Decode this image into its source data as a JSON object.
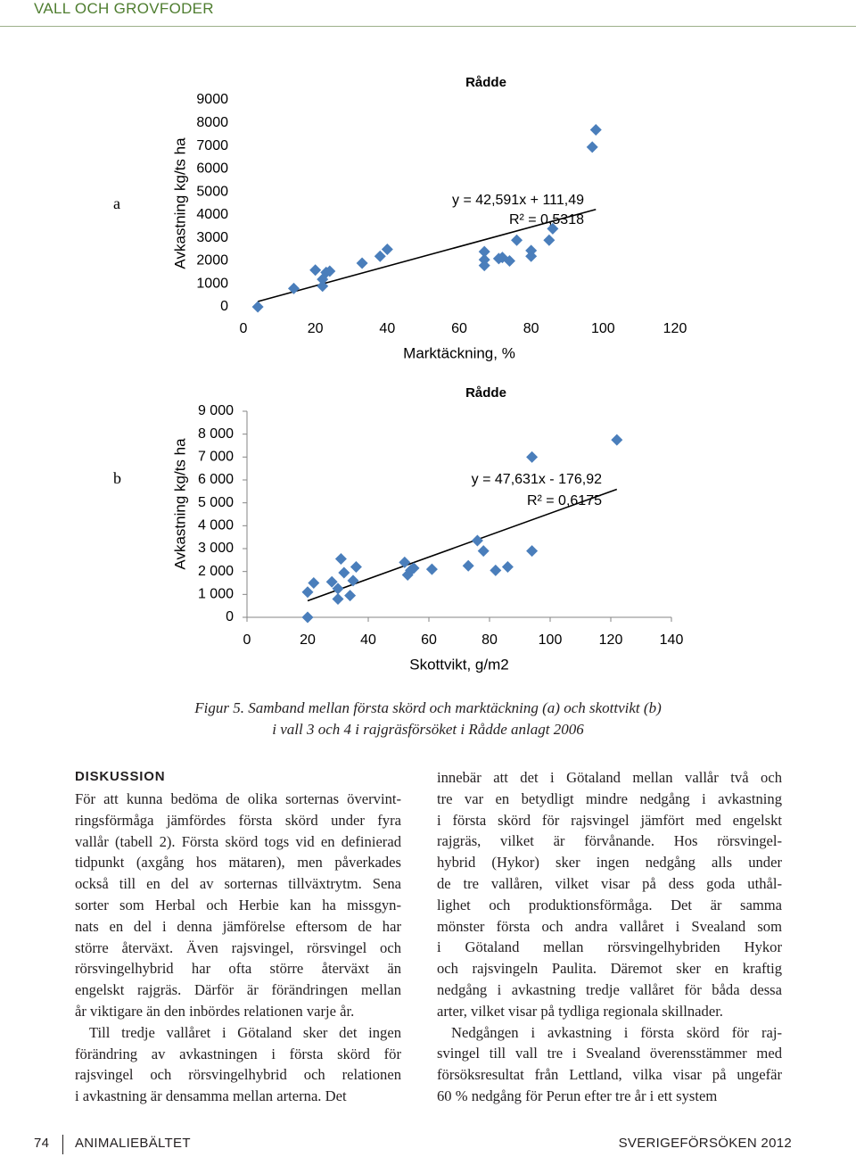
{
  "header": {
    "section": "VALL OCH GROVFODER"
  },
  "chart_data": [
    {
      "type": "scatter",
      "panel": "a",
      "title": "Rådde",
      "y_label": "Avkastning kg/ts ha",
      "x_label": "Marktäckning, %",
      "annotations": [
        "y = 42,591x + 111,49",
        "R² = 0,5318"
      ],
      "color": "#4a7ebb",
      "trendline": true,
      "x": [
        4,
        14,
        20,
        22,
        22,
        23,
        24,
        33,
        38,
        40,
        67,
        67,
        67,
        71,
        72,
        74,
        76,
        80,
        80,
        85,
        86,
        97,
        98
      ],
      "values": [
        0,
        800,
        1600,
        1200,
        900,
        1500,
        1550,
        1900,
        2200,
        2500,
        2400,
        2050,
        1800,
        2100,
        2150,
        2000,
        2900,
        2450,
        2200,
        2900,
        3400,
        6950,
        7700
      ],
      "xlim": [
        0,
        120
      ],
      "xticks": [
        0,
        20,
        40,
        60,
        80,
        100,
        120
      ],
      "ylim": [
        0,
        9000
      ],
      "yticks": [
        0,
        1000,
        2000,
        3000,
        4000,
        5000,
        6000,
        7000,
        8000,
        9000
      ],
      "axes": false
    },
    {
      "type": "scatter",
      "panel": "b",
      "title": "Rådde",
      "y_label": "Avkastning kg/ts ha",
      "x_label": "Skottvikt, g/m2",
      "annotations": [
        "y = 47,631x - 176,92",
        "R² = 0,6175"
      ],
      "color": "#4a7ebb",
      "trendline": true,
      "x": [
        20,
        20,
        22,
        28,
        30,
        30,
        31,
        32,
        34,
        35,
        36,
        52,
        53,
        54,
        55,
        61,
        73,
        76,
        78,
        82,
        86,
        94,
        94,
        122
      ],
      "values": [
        0,
        1100,
        1500,
        1550,
        1250,
        800,
        2550,
        1950,
        950,
        1600,
        2200,
        2400,
        1850,
        2050,
        2150,
        2100,
        2250,
        3350,
        2900,
        2050,
        2200,
        7000,
        2900,
        7750
      ],
      "xlim": [
        0,
        140
      ],
      "xticks": [
        0,
        20,
        40,
        60,
        80,
        100,
        120,
        140
      ],
      "ylim": [
        0,
        9000
      ],
      "yticks": [
        0,
        {
          "value": 1000,
          "label": "1 000"
        },
        {
          "value": 2000,
          "label": "2 000"
        },
        {
          "value": 3000,
          "label": "3 000"
        },
        {
          "value": 4000,
          "label": "4 000"
        },
        {
          "value": 5000,
          "label": "5 000"
        },
        {
          "value": 6000,
          "label": "6 000"
        },
        {
          "value": 7000,
          "label": "7 000"
        },
        {
          "value": 8000,
          "label": "8 000"
        },
        {
          "value": 9000,
          "label": "9 000"
        }
      ],
      "axes": true
    }
  ],
  "caption": {
    "label": "Figur 5.",
    "lines": [
      "Samband mellan första skörd och marktäckning (a) och skottvikt (b)",
      "i vall 3 och 4 i rajgräsförsöket i Rådde anlagt 2006"
    ]
  },
  "body": {
    "heading": "DISKUSSION",
    "left": [
      [
        "För att kunna bedöma de olika sorternas övervint-",
        "ringsförmåga jämfördes första skörd under fyra",
        "vallår (tabell 2). Första skörd togs vid en definierad",
        "tidpunkt (axgång hos mätaren), men påverkades",
        "också till en del av sorternas tillväxtrytm. Sena",
        "sorter som Herbal och Herbie kan ha missgyn-",
        "nats en del i denna jämförelse eftersom de har",
        "större återväxt. Även rajsvingel, rörsvingel och",
        "rörsvingelhybrid har ofta större återväxt än",
        "engelskt rajgräs. Därför är förändringen mellan",
        "år viktigare än den inbördes relationen varje år."
      ],
      [
        "Till tredje vallåret i Götaland sker det ingen",
        "förändring av avkastningen i första skörd för",
        "rajsvingel och rörsvingelhybrid och relationen",
        "i avkastning är densamma mellan arterna. Det"
      ]
    ],
    "right": [
      [
        "innebär att det i Götaland mellan vallår två och",
        "tre var en betydligt mindre nedgång i avkastning",
        "i första skörd för rajsvingel jämfört med engelskt",
        "rajgräs, vilket är förvånande. Hos rörsvingel-",
        "hybrid (Hykor) sker ingen nedgång alls under",
        "de tre vallåren, vilket visar på dess goda uthål-",
        "lighet och produktionsförmåga. Det är samma",
        "mönster första och andra vallåret i Svealand som",
        "i Götaland mellan rörsvingelhybriden Hykor",
        "och rajsvingeln Paulita. Däremot sker en kraftig",
        "nedgång i avkastning tredje vallåret för båda dessa",
        "arter, vilket visar på tydliga regionala skillnader."
      ],
      [
        "Nedgången i avkastning i första skörd för raj-",
        "svingel till vall tre i Svealand överensstämmer med",
        "försöksresultat från Lettland, vilka visar på ungefär",
        "60 % nedgång för Perun efter tre år i ett system"
      ]
    ]
  },
  "footer": {
    "page": "74",
    "left": "ANIMALIEBÄLTET",
    "right": "SVERIGEFÖRSÖKEN 2012"
  }
}
